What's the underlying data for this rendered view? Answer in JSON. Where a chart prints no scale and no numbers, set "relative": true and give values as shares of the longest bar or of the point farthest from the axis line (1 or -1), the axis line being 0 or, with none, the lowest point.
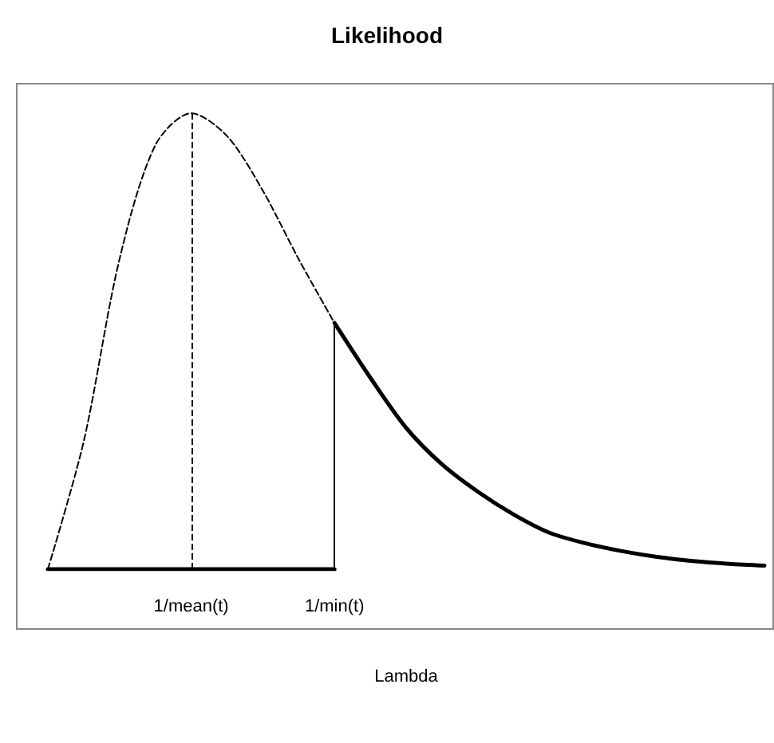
{
  "chart_data": {
    "type": "line",
    "title": "Likelihood",
    "xlabel": "Lambda",
    "relative": true,
    "categories": [
      null,
      null,
      null,
      null,
      "1/mean(t)",
      null,
      null,
      null,
      "1/min(t)",
      null,
      null,
      null,
      null,
      null,
      null,
      null,
      null,
      null,
      null,
      null,
      null
    ],
    "series": [
      {
        "color": "#000000",
        "line_style": "dashed",
        "values": [
          0,
          0.28,
          0.68,
          0.93,
          1,
          0.95,
          0.83,
          0.68,
          0.54,
          null,
          null,
          null,
          null,
          null,
          null,
          null,
          null,
          null,
          null,
          null,
          null
        ]
      },
      {
        "color": "#000000",
        "line_style": "solid",
        "values": [
          null,
          null,
          null,
          null,
          null,
          null,
          null,
          null,
          0.54,
          0.42,
          0.31,
          0.23,
          0.17,
          0.12,
          0.08,
          0.057,
          0.04,
          0.027,
          0.018,
          0.012,
          0.008
        ]
      },
      {
        "color": "#000000",
        "line_style": "solid",
        "values": [
          0,
          0,
          0,
          0,
          0,
          0,
          0,
          0,
          0,
          null,
          null,
          null,
          null,
          null,
          null,
          null,
          null,
          null,
          null,
          null,
          null
        ]
      }
    ],
    "ref_lines": [
      {
        "axis": "x",
        "value": "1/mean(t)",
        "line_style": "dashed",
        "color": "#000000"
      },
      {
        "axis": "x",
        "value": "1/min(t)",
        "line_style": "solid",
        "color": "#000000"
      }
    ],
    "marker": "none"
  }
}
